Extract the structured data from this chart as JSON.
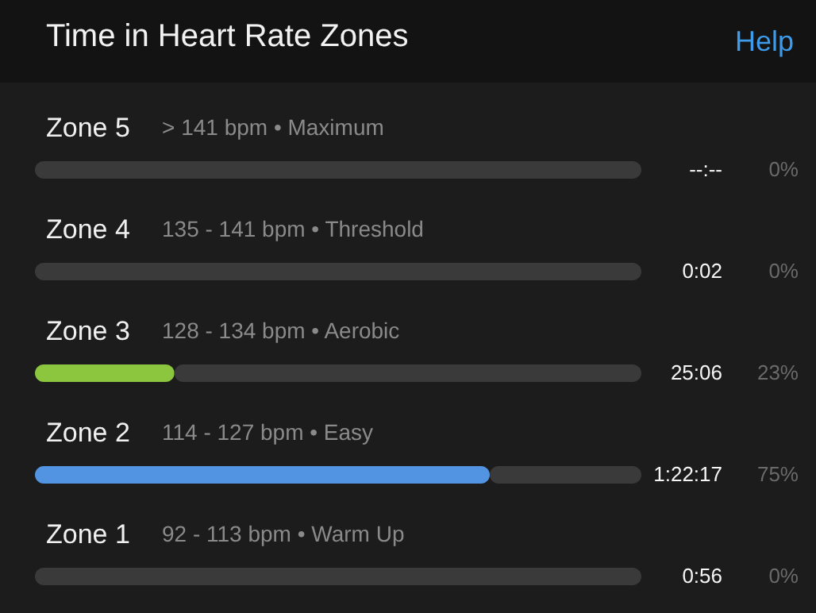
{
  "chart_data": {
    "type": "bar",
    "orientation": "horizontal",
    "stacked": true,
    "title": "Time in Heart Rate Zones",
    "categories": [
      "Zone 5",
      "Zone 4",
      "Zone 3",
      "Zone 2",
      "Zone 1"
    ],
    "series": [
      {
        "colors": [
          "#5a5a5a",
          "#5a5a5a",
          "#8cc63f",
          "#5294e2",
          "#dddddd"
        ],
        "values": [
          0,
          0,
          23,
          75,
          0
        ],
        "value_labels": [
          "0%",
          "0%",
          "23%",
          "75%",
          "0%"
        ]
      },
      {
        "color": "#3a3a3a",
        "values": [
          100,
          100,
          77,
          25,
          100
        ]
      }
    ],
    "xlim": [
      0,
      100
    ],
    "tick_labels": "y",
    "annotations": [
      "> 141 bpm • Maximum",
      "135 - 141 bpm • Threshold",
      "128 - 134 bpm • Aerobic",
      "114 - 127 bpm • Easy",
      "92 - 113 bpm • Warm Up",
      "--:--",
      "0:02",
      "25:06",
      "1:22:17",
      "0:56",
      "Help"
    ]
  }
}
